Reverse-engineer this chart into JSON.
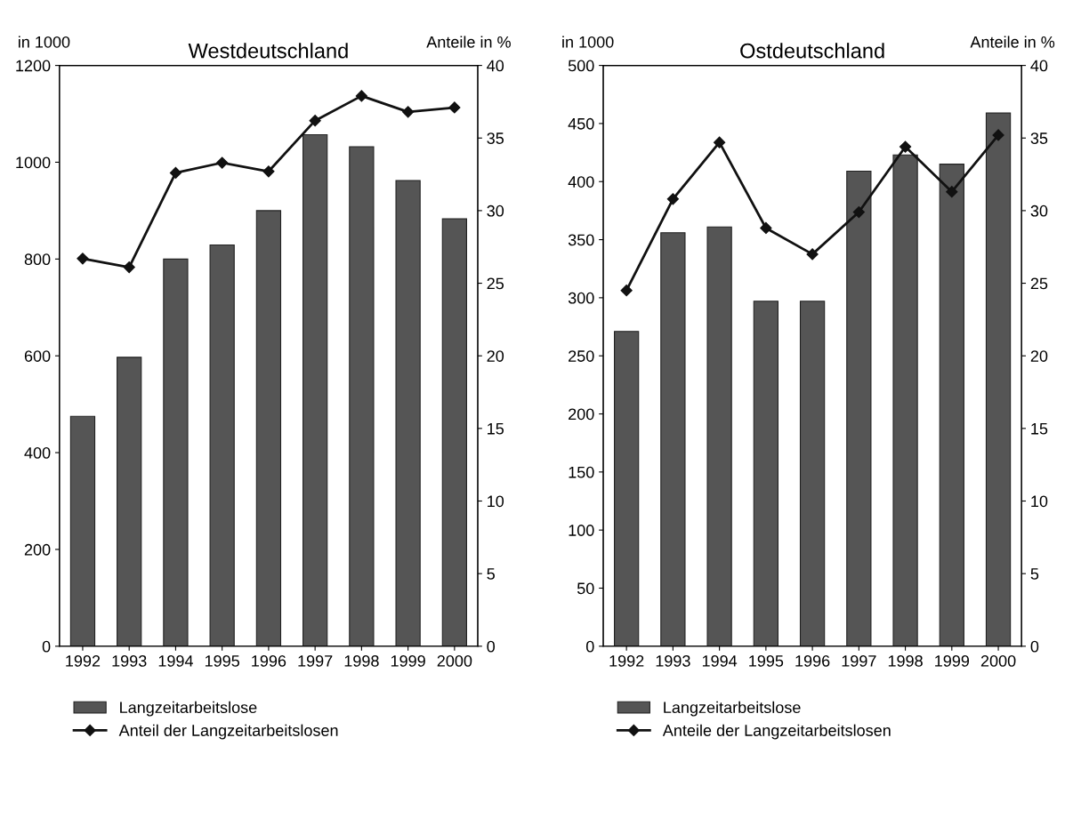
{
  "chart_data": [
    {
      "type": "bar",
      "title": "Westdeutschland",
      "ylabel": "in 1000",
      "y2label": "Anteile in %",
      "categories": [
        "1992",
        "1993",
        "1994",
        "1995",
        "1996",
        "1997",
        "1998",
        "1999",
        "2000"
      ],
      "series": [
        {
          "name": "Langzeitarbeitslose",
          "color": "#555555",
          "values": [
            475,
            597,
            800,
            829,
            900,
            1057,
            1032,
            962,
            883
          ]
        },
        {
          "name": "Anteil der Langzeitarbeitslosen",
          "type": "line",
          "axis": "y2",
          "color": "#111111",
          "values": [
            26.7,
            26.1,
            32.6,
            33.3,
            32.7,
            36.2,
            37.9,
            36.8,
            37.1
          ]
        }
      ],
      "ylim": [
        0,
        1200
      ],
      "yticks": [
        0,
        200,
        400,
        600,
        800,
        1000,
        1200
      ],
      "y2lim": [
        0,
        40
      ],
      "y2ticks": [
        0,
        5,
        10,
        15,
        20,
        25,
        30,
        35,
        40
      ],
      "marker": "diamond",
      "line_style": "solid",
      "legend": "bottom left",
      "grid": false
    },
    {
      "type": "bar",
      "title": "Ostdeutschland",
      "ylabel": "in 1000",
      "y2label": "Anteile in %",
      "categories": [
        "1992",
        "1993",
        "1994",
        "1995",
        "1996",
        "1997",
        "1998",
        "1999",
        "2000"
      ],
      "series": [
        {
          "name": "Langzeitarbeitslose",
          "color": "#555555",
          "values": [
            271,
            356,
            361,
            297,
            297,
            409,
            423,
            415,
            459
          ]
        },
        {
          "name": "Anteile der Langzeitarbeitslosen",
          "type": "line",
          "axis": "y2",
          "color": "#111111",
          "values": [
            24.5,
            30.8,
            34.7,
            28.8,
            27.0,
            29.9,
            34.4,
            31.3,
            35.2
          ]
        }
      ],
      "ylim": [
        0,
        500
      ],
      "yticks": [
        0,
        50,
        100,
        150,
        200,
        250,
        300,
        350,
        400,
        450,
        500
      ],
      "y2lim": [
        0,
        40
      ],
      "y2ticks": [
        0,
        5,
        10,
        15,
        20,
        25,
        30,
        35,
        40
      ],
      "marker": "diamond",
      "line_style": "solid",
      "legend": "bottom left",
      "grid": false
    }
  ]
}
